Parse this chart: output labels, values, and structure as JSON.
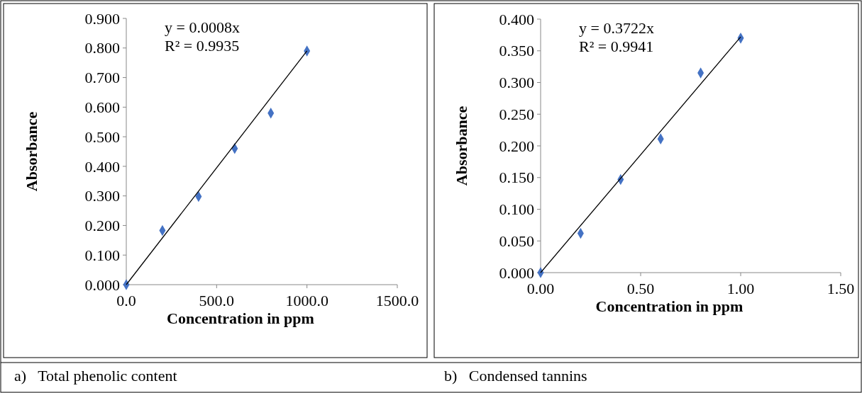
{
  "chart_data": [
    {
      "type": "scatter",
      "xlabel": "Concentration in ppm",
      "ylabel": "Absorbance",
      "xlim": [
        0,
        1500
      ],
      "xticks": [
        {
          "value": 0,
          "label": "0.0"
        },
        {
          "value": 500,
          "label": "500.0"
        },
        {
          "value": 1000,
          "label": "1000.0"
        },
        {
          "value": 1500,
          "label": "1500.0"
        }
      ],
      "ylim": [
        0,
        0.9
      ],
      "yticks": [
        {
          "value": 0,
          "label": "0.000"
        },
        {
          "value": 0.1,
          "label": "0.100"
        },
        {
          "value": 0.2,
          "label": "0.200"
        },
        {
          "value": 0.3,
          "label": "0.300"
        },
        {
          "value": 0.4,
          "label": "0.400"
        },
        {
          "value": 0.5,
          "label": "0.500"
        },
        {
          "value": 0.6,
          "label": "0.600"
        },
        {
          "value": 0.7,
          "label": "0.700"
        },
        {
          "value": 0.8,
          "label": "0.800"
        },
        {
          "value": 0.9,
          "label": "0.900"
        }
      ],
      "grid": false,
      "series": [
        {
          "color": "#4472c4",
          "marker": "diamond",
          "x": [
            0,
            200,
            400,
            600,
            800,
            1000
          ],
          "values": [
            0,
            0.183,
            0.298,
            0.46,
            0.58,
            0.79
          ]
        },
        {
          "type": "line",
          "color": "#000000",
          "marker": "none",
          "line_style": "solid",
          "x": [
            0,
            1000
          ],
          "values": [
            0,
            0.79
          ]
        }
      ],
      "annotations": [
        "y = 0.0008x",
        "R² = 0.9935",
        "a)   Total phenolic content"
      ]
    },
    {
      "type": "scatter",
      "xlabel": "Concentration in ppm",
      "ylabel": "Absorbance",
      "xlim": [
        0,
        1.5
      ],
      "xticks": [
        {
          "value": 0,
          "label": "0.00"
        },
        {
          "value": 0.5,
          "label": "0.50"
        },
        {
          "value": 1,
          "label": "1.00"
        },
        {
          "value": 1.5,
          "label": "1.50"
        }
      ],
      "ylim": [
        0,
        0.4
      ],
      "yticks": [
        {
          "value": 0,
          "label": "0.000"
        },
        {
          "value": 0.05,
          "label": "0.050"
        },
        {
          "value": 0.1,
          "label": "0.100"
        },
        {
          "value": 0.15,
          "label": "0.150"
        },
        {
          "value": 0.2,
          "label": "0.200"
        },
        {
          "value": 0.25,
          "label": "0.250"
        },
        {
          "value": 0.3,
          "label": "0.300"
        },
        {
          "value": 0.35,
          "label": "0.350"
        },
        {
          "value": 0.4,
          "label": "0.400"
        }
      ],
      "grid": false,
      "series": [
        {
          "color": "#4472c4",
          "marker": "diamond",
          "x": [
            0,
            0.2,
            0.4,
            0.6,
            0.8,
            1
          ],
          "values": [
            0,
            0.062,
            0.147,
            0.211,
            0.315,
            0.37
          ]
        },
        {
          "type": "line",
          "color": "#000000",
          "marker": "none",
          "line_style": "solid",
          "x": [
            0,
            1
          ],
          "values": [
            0,
            0.372
          ]
        }
      ],
      "annotations": [
        "y = 0.3722x",
        "R² = 0.9941",
        "b)   Condensed tannins"
      ]
    }
  ]
}
